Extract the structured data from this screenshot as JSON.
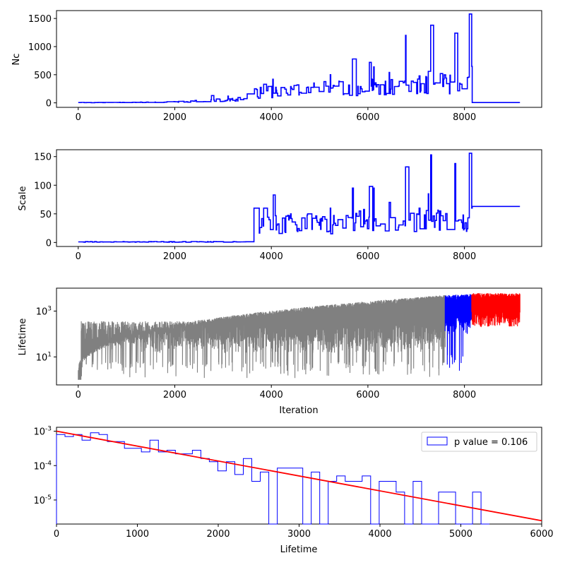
{
  "chart_data": [
    {
      "type": "line",
      "ylabel": "Nc",
      "xlim": [
        -450,
        9600
      ],
      "ylim": [
        -80,
        1640
      ],
      "xticks": [
        0,
        2000,
        4000,
        6000,
        8000
      ],
      "xtick_labels": [
        "0",
        "2000",
        "4000",
        "6000",
        "8000"
      ],
      "yticks": [
        0,
        500,
        1000,
        1500
      ],
      "ytick_labels": [
        "0",
        "500",
        "1000",
        "1500"
      ],
      "series": [
        {
          "color": "#0000ff",
          "x": [
            0,
            400,
            800,
            1200,
            1600,
            2000,
            2400,
            2800,
            3200,
            3600,
            3620,
            3800,
            4000,
            4400,
            4800,
            5200,
            5600,
            6000,
            6400,
            6800,
            7200,
            7600,
            8000,
            8100,
            8150,
            9150
          ],
          "y": [
            5,
            5,
            6,
            8,
            10,
            15,
            25,
            40,
            55,
            70,
            150,
            170,
            180,
            200,
            210,
            230,
            250,
            260,
            280,
            300,
            300,
            300,
            280,
            280,
            5,
            5
          ],
          "spikes": [
            {
              "x": 2760,
              "y": 130
            },
            {
              "x": 3100,
              "y": 120
            },
            {
              "x": 3500,
              "y": 160
            },
            {
              "x": 3650,
              "y": 250
            },
            {
              "x": 3840,
              "y": 330
            },
            {
              "x": 4030,
              "y": 420
            },
            {
              "x": 4400,
              "y": 290
            },
            {
              "x": 4750,
              "y": 280
            },
            {
              "x": 5220,
              "y": 500
            },
            {
              "x": 5680,
              "y": 780
            },
            {
              "x": 6030,
              "y": 720
            },
            {
              "x": 6120,
              "y": 640
            },
            {
              "x": 6440,
              "y": 540
            },
            {
              "x": 6780,
              "y": 1200
            },
            {
              "x": 7060,
              "y": 480
            },
            {
              "x": 7250,
              "y": 560
            },
            {
              "x": 7300,
              "y": 1380
            },
            {
              "x": 7500,
              "y": 520
            },
            {
              "x": 7800,
              "y": 1240
            },
            {
              "x": 8100,
              "y": 1580
            },
            {
              "x": 8150,
              "y": 650
            }
          ]
        }
      ]
    },
    {
      "type": "line",
      "ylabel": "Scale",
      "xlim": [
        -450,
        9600
      ],
      "ylim": [
        -7,
        162
      ],
      "xticks": [
        0,
        2000,
        4000,
        6000,
        8000
      ],
      "xtick_labels": [
        "0",
        "2000",
        "4000",
        "6000",
        "8000"
      ],
      "yticks": [
        0,
        50,
        100,
        150
      ],
      "ytick_labels": [
        "0",
        "50",
        "100",
        "150"
      ],
      "series": [
        {
          "color": "#0000ff",
          "x": [
            0,
            3600,
            3620,
            3800,
            4000,
            4400,
            4800,
            5200,
            5600,
            6000,
            6400,
            6800,
            7200,
            7600,
            8000,
            8100,
            8150,
            9150
          ],
          "y": [
            1,
            1,
            35,
            30,
            32,
            30,
            28,
            30,
            32,
            35,
            33,
            35,
            38,
            35,
            30,
            30,
            63,
            63
          ],
          "spikes": [
            {
              "x": 3640,
              "y": 60
            },
            {
              "x": 3840,
              "y": 60
            },
            {
              "x": 4040,
              "y": 83
            },
            {
              "x": 4400,
              "y": 50
            },
            {
              "x": 4750,
              "y": 50
            },
            {
              "x": 5220,
              "y": 60
            },
            {
              "x": 5680,
              "y": 95
            },
            {
              "x": 6030,
              "y": 98
            },
            {
              "x": 6120,
              "y": 95
            },
            {
              "x": 6440,
              "y": 70
            },
            {
              "x": 6780,
              "y": 132
            },
            {
              "x": 7060,
              "y": 60
            },
            {
              "x": 7250,
              "y": 85
            },
            {
              "x": 7300,
              "y": 153
            },
            {
              "x": 7500,
              "y": 55
            },
            {
              "x": 7800,
              "y": 138
            },
            {
              "x": 8100,
              "y": 156
            },
            {
              "x": 8150,
              "y": 60
            }
          ]
        }
      ]
    },
    {
      "type": "line",
      "ylabel": "Lifetime",
      "xlabel": "Iteration",
      "yscale": "log",
      "xlim": [
        -450,
        9600
      ],
      "ylim": [
        0.6,
        10000
      ],
      "xticks": [
        0,
        2000,
        4000,
        6000,
        8000
      ],
      "xtick_labels": [
        "0",
        "2000",
        "4000",
        "6000",
        "8000"
      ],
      "yticks": [
        10,
        1000
      ],
      "ytick_labels": [
        "10^1",
        "10^3"
      ],
      "series": [
        {
          "name": "",
          "color": "#808080",
          "x_range": [
            0,
            7600
          ],
          "envelope_top": "growing",
          "top_start": 2,
          "top_end": 5000
        },
        {
          "name": "",
          "color": "#0000ff",
          "x_range": [
            7600,
            8150
          ],
          "envelope_top": "flat",
          "top_start": 5000,
          "top_end": 5500
        },
        {
          "name": "",
          "color": "#ff0000",
          "x_range": [
            8150,
            9150
          ],
          "envelope_top": "flat",
          "top_start": 6000,
          "top_end": 6000
        }
      ]
    },
    {
      "type": "histogram",
      "xlabel": "Lifetime",
      "yscale": "log",
      "xlim": [
        0,
        6000
      ],
      "ylim": [
        2e-06,
        0.0013
      ],
      "xticks": [
        0,
        1000,
        2000,
        3000,
        4000,
        5000,
        6000
      ],
      "xtick_labels": [
        "0",
        "1000",
        "2000",
        "3000",
        "4000",
        "5000",
        "6000"
      ],
      "yticks": [
        1e-05,
        0.0001,
        0.001
      ],
      "ytick_labels": [
        "10^-5",
        "10^-4",
        "10^-3"
      ],
      "legend": {
        "label": "p value = 0.106",
        "placement": "top-right"
      },
      "histogram": {
        "color": "#0000ff",
        "bin_width": 105,
        "start": 0,
        "values": [
          0.0008,
          0.0007,
          0.0008,
          0.00055,
          0.0009,
          0.0008,
          0.0005,
          0.0005,
          0.00032,
          0.00032,
          0.00025,
          0.00055,
          0.00025,
          0.00028,
          0.00022,
          0.00022,
          0.00028,
          0.00016,
          0.00013,
          7e-05,
          0.00013,
          5.5e-05,
          0.00016,
          3.5e-05,
          6.5e-05,
          0,
          8.5e-05,
          8.5e-05,
          8.5e-05,
          0,
          6.5e-05,
          0,
          3.5e-05,
          5e-05,
          3.5e-05,
          3.5e-05,
          5e-05,
          0,
          3.5e-05,
          3.5e-05,
          1.7e-05,
          0,
          3.5e-05,
          0,
          0,
          1.7e-05,
          1.7e-05,
          0,
          0,
          1.7e-05,
          0
        ]
      },
      "fit_line": {
        "color": "#ff0000",
        "x": [
          0,
          6000
        ],
        "y": [
          0.001,
          2.5e-06
        ]
      }
    }
  ]
}
